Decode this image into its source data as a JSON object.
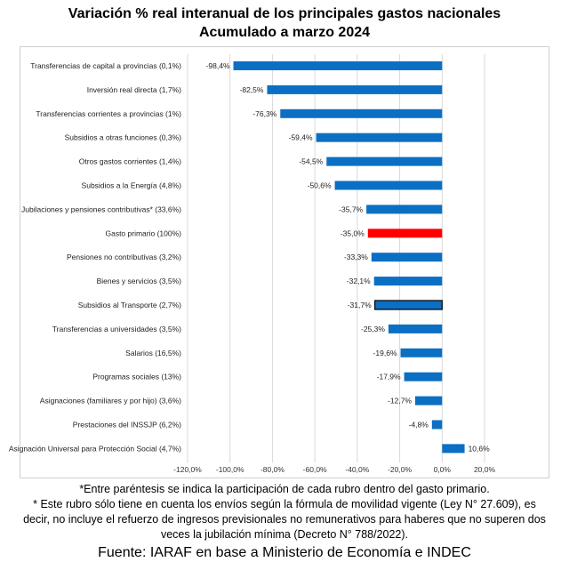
{
  "header": {
    "title_line1": "Variación % real interanual de los principales gastos nacionales",
    "title_line2": "Acumulado a marzo 2024"
  },
  "chart_data": {
    "type": "bar",
    "orientation": "horizontal",
    "categories": [
      "Transferencias de capital a provincias (0,1%)",
      "Inversión real directa (1,7%)",
      "Transferencias corrientes a provincias (1%)",
      "Subsidios a otras funciones (0,3%)",
      "Otros gastos corrientes (1,4%)",
      "Subsidios a la Energía (4,8%)",
      "Jubilaciones y pensiones contributivas* (33,6%)",
      "Gasto primario (100%)",
      "Pensiones no contributivas (3,2%)",
      "Bienes y servicios (3,5%)",
      "Subsidios al Transporte (2,7%)",
      "Transferencias a universidades (3,5%)",
      "Salarios (16,5%)",
      "Programas sociales (13%)",
      "Asignaciones (familiares y por hijo) (3,6%)",
      "Prestaciones del INSSJP (6,2%)",
      "Asignación Universal para Protección Social (4,7%)"
    ],
    "values": [
      -98.4,
      -82.5,
      -76.3,
      -59.4,
      -54.5,
      -50.6,
      -35.7,
      -35.0,
      -33.3,
      -32.1,
      -31.7,
      -25.3,
      -19.6,
      -17.9,
      -12.7,
      -4.8,
      10.6
    ],
    "data_labels": [
      "-98,4%",
      "-82,5%",
      "-76,3%",
      "-59,4%",
      "-54,5%",
      "-50,6%",
      "-35,7%",
      "-35,0%",
      "-33,3%",
      "-32,1%",
      "-31,7%",
      "-25,3%",
      "-19,6%",
      "-17,9%",
      "-12,7%",
      "-4,8%",
      "10,6%"
    ],
    "xticks": [
      -120,
      -100,
      -80,
      -60,
      -40,
      -20,
      0,
      20
    ],
    "xtick_labels": [
      "-120,0%",
      "-100,0%",
      "-80,0%",
      "-60,0%",
      "-40,0%",
      "-20,0%",
      "0,0%",
      "20,0%"
    ],
    "xlim": [
      -120,
      20
    ],
    "grid": true,
    "colors": {
      "default": "#0b6fc4",
      "highlight": "#ff0000",
      "outlined_border": "#000000",
      "grid": "#d9d9d9"
    },
    "highlight_index": 7,
    "outlined_index": 10
  },
  "notes": {
    "line1": "*Entre paréntesis se indica la participación de cada rubro dentro del gasto primario.",
    "line2": "* Este rubro sólo tiene en cuenta los envíos según la fórmula de movilidad vigente (Ley N° 27.609), es",
    "line3": "decir, no incluye el refuerzo de ingresos previsionales no remunerativos para haberes que no superen dos",
    "line4": "veces la jubilación mínima (Decreto N° 788/2022)."
  },
  "source": {
    "text": "Fuente: IARAF en base a Ministerio de Economía e INDEC"
  }
}
